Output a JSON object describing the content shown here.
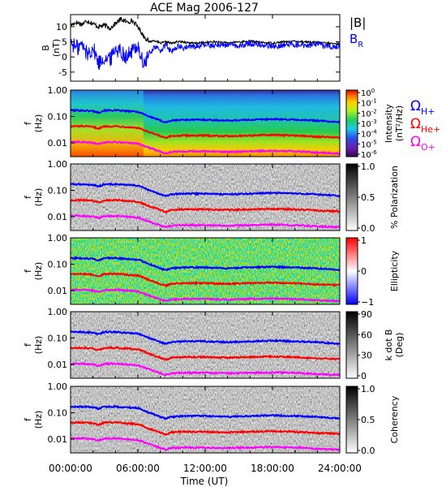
{
  "title": "ACE Mag 2006-127",
  "xaxis": {
    "label": "Time (UT)",
    "range_hours": [
      0,
      24
    ],
    "ticks": [
      {
        "hour": 0,
        "label": "00:00:00"
      },
      {
        "hour": 6,
        "label": "06:00:00"
      },
      {
        "hour": 12,
        "label": "12:00:00"
      },
      {
        "hour": 18,
        "label": "18:00:00"
      },
      {
        "hour": 24,
        "label": "24:00:00"
      }
    ]
  },
  "colors": {
    "total_field": "#000000",
    "radial_field": "#0000ff",
    "omega_h": "#0000ff",
    "omega_he": "#ff0000",
    "omega_o": "#ff00ff"
  },
  "legend_field": [
    {
      "text": "|B|",
      "sub": "",
      "color": "#000000"
    },
    {
      "text": "B",
      "sub": "R",
      "color": "#0000ff"
    }
  ],
  "legend_cyclotron": [
    {
      "text": "Ω",
      "sub": "H+",
      "color": "#0000ff"
    },
    {
      "text": "Ω",
      "sub": "He+",
      "color": "#ff0000"
    },
    {
      "text": "Ω",
      "sub": "O+",
      "color": "#ff00ff"
    }
  ],
  "spectrogram_yaxis": {
    "label": "f",
    "unit": "(Hz)",
    "scale": "log",
    "range": [
      0.003,
      1.0
    ],
    "ticks": [
      {
        "value": 1.0,
        "label": "1.00"
      },
      {
        "value": 0.1,
        "label": "0.10"
      },
      {
        "value": 0.01,
        "label": "0.01"
      }
    ]
  },
  "chart_data": [
    {
      "type": "line",
      "panel": "magnetic-field",
      "ylabel": "B",
      "yunit": "(nT)",
      "ylim": [
        -8,
        14
      ],
      "yticks": [
        {
          "value": 10,
          "label": "10"
        },
        {
          "value": 5,
          "label": "5"
        },
        {
          "value": 0,
          "label": "0"
        },
        {
          "value": -5,
          "label": "-5"
        }
      ],
      "x": [
        0,
        0.5,
        1,
        1.5,
        2,
        2.5,
        3,
        3.5,
        4,
        4.5,
        5,
        5.5,
        6,
        6.5,
        7,
        7.5,
        8,
        8.5,
        9,
        9.5,
        10,
        11,
        12,
        13,
        14,
        15,
        16,
        17,
        18,
        19,
        20,
        21,
        22,
        23,
        24
      ],
      "series": [
        {
          "name": "|B|",
          "values": [
            10.5,
            11.5,
            10.8,
            12,
            11,
            10,
            10.5,
            9.5,
            11,
            12.5,
            11.5,
            12,
            10,
            7,
            5,
            5.5,
            4.5,
            5,
            4.5,
            5,
            5,
            4.5,
            4.8,
            5,
            4.6,
            5,
            5.2,
            4.8,
            4.6,
            5,
            5.2,
            5,
            4.8,
            4.5,
            4.3
          ]
        },
        {
          "name": "B_R",
          "values": [
            5,
            3,
            4,
            1,
            3,
            -2,
            0,
            -1,
            3,
            2,
            0,
            2,
            4,
            -3,
            1,
            3.5,
            2,
            4,
            1.5,
            3.5,
            3,
            3.5,
            3.8,
            4,
            4,
            3.5,
            4.5,
            4,
            3.5,
            4,
            4.2,
            3.8,
            4,
            3.5,
            3.5
          ]
        }
      ]
    },
    {
      "type": "heatmap",
      "panel": "intensity",
      "colorbar": {
        "label": "Intensity",
        "unit": "(nT²/Hz)",
        "scheme": "rainbow",
        "ticks": [
          {
            "label": "10",
            "exp": "0"
          },
          {
            "label": "10",
            "exp": "-1"
          },
          {
            "label": "10",
            "exp": "-2"
          },
          {
            "label": "10",
            "exp": "-3"
          },
          {
            "label": "10",
            "exp": "-4"
          },
          {
            "label": "10",
            "exp": "-5"
          },
          {
            "label": "10",
            "exp": "-6"
          }
        ]
      }
    },
    {
      "type": "heatmap",
      "panel": "polarization",
      "colorbar": {
        "label": "% Polarization",
        "scheme": "gray",
        "ticks": [
          {
            "label": "1.0"
          },
          {
            "label": "0.5"
          },
          {
            "label": "0.0"
          }
        ]
      }
    },
    {
      "type": "heatmap",
      "panel": "ellipticity",
      "colorbar": {
        "label": "Ellipticity",
        "scheme": "bluewhitered",
        "ticks": [
          {
            "label": "1"
          },
          {
            "label": "0"
          },
          {
            "label": "−1"
          }
        ]
      }
    },
    {
      "type": "heatmap",
      "panel": "wave-normal-angle",
      "colorbar": {
        "label": "k dot B",
        "unit": "(Deg)",
        "scheme": "gray",
        "ticks": [
          {
            "label": "90"
          },
          {
            "label": "60"
          },
          {
            "label": "30"
          },
          {
            "label": "0"
          }
        ]
      }
    },
    {
      "type": "heatmap",
      "panel": "coherency",
      "colorbar": {
        "label": "Coherency",
        "scheme": "gray",
        "ticks": [
          {
            "label": "1.0"
          },
          {
            "label": "0.5"
          },
          {
            "label": "0.0"
          }
        ]
      }
    }
  ],
  "cyclotron_frequencies": {
    "x": [
      0,
      1,
      2,
      2.5,
      3,
      4,
      5,
      6,
      7,
      8,
      8.5,
      9,
      10,
      12,
      14,
      16,
      18,
      20,
      22,
      24
    ],
    "omega_h": [
      0.17,
      0.17,
      0.16,
      0.14,
      0.17,
      0.17,
      0.16,
      0.15,
      0.1,
      0.07,
      0.06,
      0.07,
      0.075,
      0.075,
      0.07,
      0.075,
      0.08,
      0.075,
      0.07,
      0.06
    ],
    "omega_he": [
      0.042,
      0.043,
      0.04,
      0.035,
      0.042,
      0.043,
      0.04,
      0.037,
      0.025,
      0.018,
      0.015,
      0.018,
      0.019,
      0.019,
      0.018,
      0.019,
      0.02,
      0.019,
      0.017,
      0.016
    ],
    "omega_o": [
      0.0106,
      0.0108,
      0.01,
      0.009,
      0.0105,
      0.0108,
      0.01,
      0.0093,
      0.0065,
      0.0046,
      0.004,
      0.0046,
      0.0048,
      0.0048,
      0.0046,
      0.0048,
      0.005,
      0.0048,
      0.0043,
      0.004
    ]
  }
}
